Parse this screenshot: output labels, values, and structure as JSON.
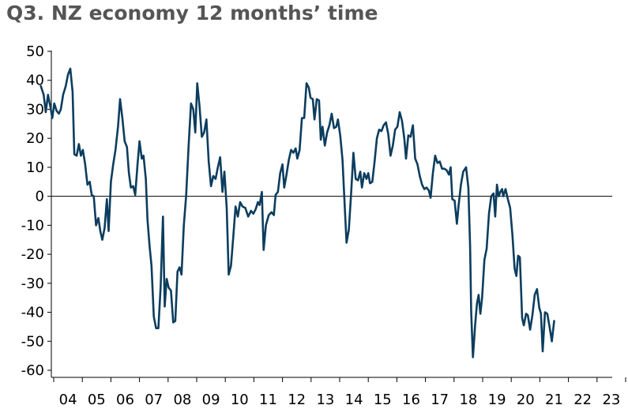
{
  "chart_data": {
    "type": "line",
    "title": "Q3. NZ economy 12 months’ time",
    "xlabel": "",
    "ylabel": "",
    "ylim": [
      -60,
      50
    ],
    "y_ticks": [
      50,
      40,
      30,
      20,
      10,
      0,
      -10,
      -20,
      -30,
      -40,
      -50,
      -60
    ],
    "x_tick_labels": [
      "04",
      "05",
      "06",
      "07",
      "08",
      "09",
      "10",
      "11",
      "12",
      "13",
      "14",
      "15",
      "16",
      "17",
      "18",
      "19",
      "20",
      "21",
      "22",
      "23"
    ],
    "xlim": [
      2003.5,
      2023.2
    ],
    "grid": false,
    "legend": "none",
    "line_color": "#0c3d5e",
    "zero_line_color": "#000000",
    "series": [
      {
        "values": [
          [
            2003.55,
            38
          ],
          [
            2003.65,
            35
          ],
          [
            2003.72,
            29
          ],
          [
            2003.8,
            35
          ],
          [
            2003.88,
            31
          ],
          [
            2003.95,
            27
          ],
          [
            2004.02,
            32
          ],
          [
            2004.1,
            29.5
          ],
          [
            2004.18,
            28.5
          ],
          [
            2004.25,
            30
          ],
          [
            2004.33,
            35
          ],
          [
            2004.42,
            38
          ],
          [
            2004.5,
            42
          ],
          [
            2004.58,
            44
          ],
          [
            2004.66,
            36
          ],
          [
            2004.72,
            14.5
          ],
          [
            2004.8,
            14
          ],
          [
            2004.88,
            18
          ],
          [
            2004.95,
            14
          ],
          [
            2005.02,
            16
          ],
          [
            2005.1,
            11
          ],
          [
            2005.18,
            4
          ],
          [
            2005.26,
            5
          ],
          [
            2005.33,
            0.5
          ],
          [
            2005.4,
            0
          ],
          [
            2005.48,
            -10
          ],
          [
            2005.56,
            -7.5
          ],
          [
            2005.63,
            -12
          ],
          [
            2005.7,
            -15
          ],
          [
            2005.78,
            -11
          ],
          [
            2005.86,
            -1
          ],
          [
            2005.92,
            -12
          ],
          [
            2006.0,
            5
          ],
          [
            2006.08,
            11
          ],
          [
            2006.16,
            16
          ],
          [
            2006.25,
            24
          ],
          [
            2006.32,
            33.5
          ],
          [
            2006.4,
            27
          ],
          [
            2006.48,
            19
          ],
          [
            2006.56,
            17
          ],
          [
            2006.63,
            8
          ],
          [
            2006.7,
            3
          ],
          [
            2006.78,
            3.5
          ],
          [
            2006.85,
            0.5
          ],
          [
            2006.93,
            11
          ],
          [
            2007.0,
            19
          ],
          [
            2007.08,
            13
          ],
          [
            2007.14,
            14
          ],
          [
            2007.22,
            6
          ],
          [
            2007.28,
            -8
          ],
          [
            2007.35,
            -17
          ],
          [
            2007.42,
            -24
          ],
          [
            2007.5,
            -41.5
          ],
          [
            2007.58,
            -45.5
          ],
          [
            2007.66,
            -45.5
          ],
          [
            2007.74,
            -31
          ],
          [
            2007.82,
            -7
          ],
          [
            2007.88,
            -38
          ],
          [
            2007.95,
            -28.5
          ],
          [
            2008.02,
            -31.5
          ],
          [
            2008.1,
            -32.5
          ],
          [
            2008.18,
            -43.5
          ],
          [
            2008.25,
            -43
          ],
          [
            2008.33,
            -26
          ],
          [
            2008.4,
            -24.5
          ],
          [
            2008.47,
            -27
          ],
          [
            2008.55,
            -10
          ],
          [
            2008.63,
            0
          ],
          [
            2008.72,
            18
          ],
          [
            2008.8,
            32
          ],
          [
            2008.88,
            30
          ],
          [
            2008.95,
            22
          ],
          [
            2009.02,
            39
          ],
          [
            2009.1,
            31
          ],
          [
            2009.18,
            20.5
          ],
          [
            2009.26,
            22
          ],
          [
            2009.34,
            26.5
          ],
          [
            2009.42,
            12
          ],
          [
            2009.5,
            3.5
          ],
          [
            2009.58,
            7
          ],
          [
            2009.66,
            6
          ],
          [
            2009.74,
            10
          ],
          [
            2009.82,
            13.5
          ],
          [
            2009.9,
            1.5
          ],
          [
            2009.97,
            8.5
          ],
          [
            2010.05,
            -4
          ],
          [
            2010.12,
            -27
          ],
          [
            2010.2,
            -24
          ],
          [
            2010.28,
            -14
          ],
          [
            2010.36,
            -3.5
          ],
          [
            2010.44,
            -7
          ],
          [
            2010.52,
            -2
          ],
          [
            2010.6,
            -3.5
          ],
          [
            2010.7,
            -4
          ],
          [
            2010.8,
            -7
          ],
          [
            2010.9,
            -5
          ],
          [
            2010.98,
            -6
          ],
          [
            2011.06,
            -4.5
          ],
          [
            2011.14,
            -2
          ],
          [
            2011.2,
            -3
          ],
          [
            2011.28,
            1.5
          ],
          [
            2011.34,
            -18.5
          ],
          [
            2011.42,
            -10
          ],
          [
            2011.52,
            -6.5
          ],
          [
            2011.62,
            -5.5
          ],
          [
            2011.7,
            -6.5
          ],
          [
            2011.76,
            0.5
          ],
          [
            2011.84,
            1.5
          ],
          [
            2011.92,
            8
          ],
          [
            2012.0,
            11
          ],
          [
            2012.06,
            3
          ],
          [
            2012.14,
            7.5
          ],
          [
            2012.22,
            12.5
          ],
          [
            2012.3,
            16
          ],
          [
            2012.38,
            15
          ],
          [
            2012.46,
            16.5
          ],
          [
            2012.52,
            13
          ],
          [
            2012.6,
            16
          ],
          [
            2012.68,
            27
          ],
          [
            2012.76,
            27
          ],
          [
            2012.84,
            39
          ],
          [
            2012.92,
            37.5
          ],
          [
            2012.98,
            34
          ],
          [
            2013.06,
            33.5
          ],
          [
            2013.12,
            26.5
          ],
          [
            2013.2,
            33.5
          ],
          [
            2013.28,
            33
          ],
          [
            2013.34,
            19.5
          ],
          [
            2013.4,
            24
          ],
          [
            2013.48,
            17.5
          ],
          [
            2013.56,
            22
          ],
          [
            2013.64,
            24.5
          ],
          [
            2013.72,
            28.5
          ],
          [
            2013.8,
            23.5
          ],
          [
            2013.88,
            24
          ],
          [
            2013.94,
            26.5
          ],
          [
            2014.02,
            21
          ],
          [
            2014.1,
            12.5
          ],
          [
            2014.18,
            -4
          ],
          [
            2014.24,
            -16
          ],
          [
            2014.32,
            -11.5
          ],
          [
            2014.4,
            1
          ],
          [
            2014.48,
            15
          ],
          [
            2014.56,
            6
          ],
          [
            2014.64,
            5.5
          ],
          [
            2014.72,
            8.5
          ],
          [
            2014.78,
            3
          ],
          [
            2014.86,
            8
          ],
          [
            2014.94,
            6
          ],
          [
            2015.0,
            8
          ],
          [
            2015.06,
            4.5
          ],
          [
            2015.14,
            5
          ],
          [
            2015.22,
            12
          ],
          [
            2015.3,
            20
          ],
          [
            2015.38,
            23
          ],
          [
            2015.46,
            22.5
          ],
          [
            2015.54,
            24.5
          ],
          [
            2015.62,
            25.5
          ],
          [
            2015.7,
            21.5
          ],
          [
            2015.78,
            14
          ],
          [
            2015.86,
            17.5
          ],
          [
            2015.94,
            23
          ],
          [
            2016.02,
            24
          ],
          [
            2016.1,
            29
          ],
          [
            2016.18,
            26
          ],
          [
            2016.26,
            20
          ],
          [
            2016.32,
            13
          ],
          [
            2016.4,
            21
          ],
          [
            2016.48,
            20.5
          ],
          [
            2016.56,
            24.5
          ],
          [
            2016.64,
            13
          ],
          [
            2016.72,
            11
          ],
          [
            2016.8,
            7
          ],
          [
            2016.88,
            4
          ],
          [
            2016.96,
            2.5
          ],
          [
            2017.04,
            3
          ],
          [
            2017.12,
            2
          ],
          [
            2017.18,
            -0.5
          ],
          [
            2017.26,
            8
          ],
          [
            2017.34,
            14
          ],
          [
            2017.42,
            11.5
          ],
          [
            2017.5,
            12
          ],
          [
            2017.58,
            9.5
          ],
          [
            2017.66,
            9.5
          ],
          [
            2017.74,
            9
          ],
          [
            2017.82,
            7.5
          ],
          [
            2017.88,
            10
          ],
          [
            2017.94,
            -1
          ],
          [
            2018.02,
            -1.5
          ],
          [
            2018.1,
            -9.5
          ],
          [
            2018.16,
            -3
          ],
          [
            2018.24,
            4
          ],
          [
            2018.32,
            8.5
          ],
          [
            2018.42,
            10
          ],
          [
            2018.5,
            3
          ],
          [
            2018.56,
            -17
          ],
          [
            2018.6,
            -40
          ],
          [
            2018.66,
            -55.5
          ],
          [
            2018.74,
            -44
          ],
          [
            2018.8,
            -37
          ],
          [
            2018.86,
            -34
          ],
          [
            2018.92,
            -40.5
          ],
          [
            2018.98,
            -35
          ],
          [
            2019.06,
            -22
          ],
          [
            2019.14,
            -18
          ],
          [
            2019.22,
            -6
          ],
          [
            2019.3,
            0
          ],
          [
            2019.38,
            1
          ],
          [
            2019.44,
            -7
          ],
          [
            2019.5,
            4
          ],
          [
            2019.56,
            0
          ],
          [
            2019.62,
            1.5
          ],
          [
            2019.68,
            2.5
          ],
          [
            2019.72,
            0
          ],
          [
            2019.8,
            2.5
          ],
          [
            2019.88,
            -1
          ],
          [
            2019.96,
            -4
          ],
          [
            2020.04,
            -13
          ],
          [
            2020.12,
            -25
          ],
          [
            2020.18,
            -27.5
          ],
          [
            2020.24,
            -20.5
          ],
          [
            2020.3,
            -21
          ],
          [
            2020.38,
            -42
          ],
          [
            2020.44,
            -44.5
          ],
          [
            2020.52,
            -40.5
          ],
          [
            2020.58,
            -41
          ],
          [
            2020.66,
            -46
          ],
          [
            2020.74,
            -41
          ],
          [
            2020.82,
            -34
          ],
          [
            2020.9,
            -32
          ],
          [
            2020.98,
            -38.5
          ],
          [
            2021.04,
            -40.5
          ],
          [
            2021.1,
            -53.5
          ],
          [
            2021.18,
            -40
          ],
          [
            2021.26,
            -40.5
          ],
          [
            2021.34,
            -45
          ],
          [
            2021.42,
            -50
          ],
          [
            2021.5,
            -43
          ]
        ]
      }
    ]
  }
}
